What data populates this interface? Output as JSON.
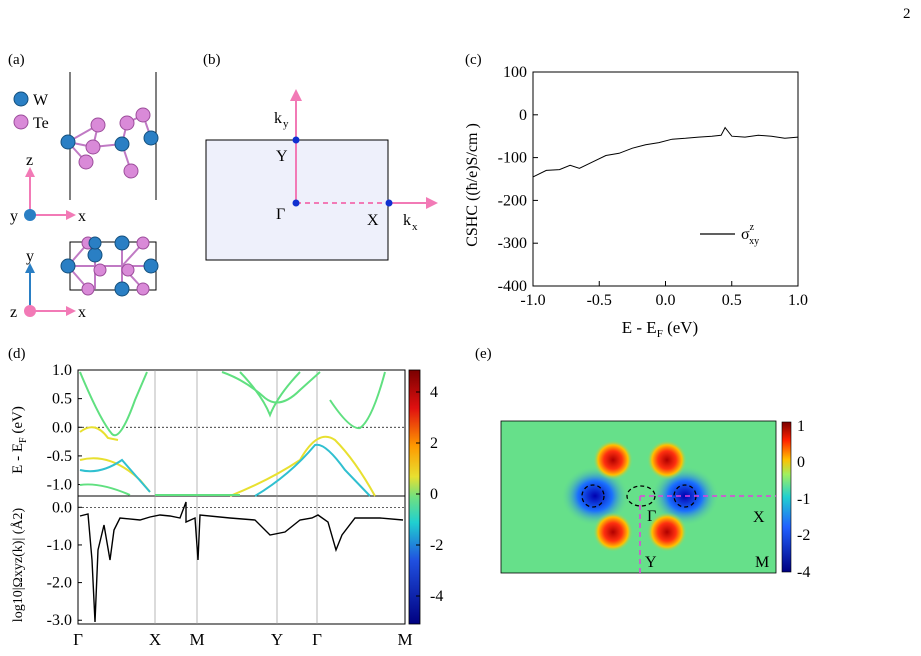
{
  "page_number": "2",
  "panel_labels": {
    "a": "(a)",
    "b": "(b)",
    "c": "(c)",
    "d": "(d)",
    "e": "(e)"
  },
  "panel_a": {
    "legend": [
      {
        "label": "W",
        "color": "#2a7fc4"
      },
      {
        "label": "Te",
        "color": "#d98ad8"
      }
    ],
    "axes_top": {
      "vertical": "z",
      "horizontal": "x",
      "out_of_plane": "y"
    },
    "axes_bottom": {
      "vertical": "y",
      "horizontal": "x",
      "out_of_plane": "z"
    }
  },
  "panel_b": {
    "kx": "k",
    "kx_sub": "x",
    "ky": "k",
    "ky_sub": "y",
    "points": {
      "gamma": "Γ",
      "x": "X",
      "y": "Y"
    },
    "colors": {
      "bz_fill": "#eef0fb",
      "arrow": "#f27ab6",
      "point": "#1030d0"
    }
  },
  "panel_c": {
    "chart_data": {
      "type": "line",
      "title": "",
      "xlabel": "E - E_F (eV)",
      "ylabel": "CSHC ((ħ/e)S/cm )",
      "xlim": [
        -1.0,
        1.0
      ],
      "ylim": [
        -400,
        100
      ],
      "xticks": [
        "-1.0",
        "-0.5",
        "0.0",
        "0.5",
        "1.0"
      ],
      "yticks": [
        "100",
        "0",
        "-100",
        "-200",
        "-300",
        "-400"
      ],
      "legend": "σ_xy^z",
      "legend_position": "bottom-right",
      "series": [
        {
          "name": "σ_xy^z",
          "x": [
            -1.0,
            -0.9,
            -0.8,
            -0.72,
            -0.65,
            -0.55,
            -0.45,
            -0.35,
            -0.25,
            -0.15,
            -0.05,
            0.05,
            0.15,
            0.25,
            0.35,
            0.42,
            0.45,
            0.5,
            0.6,
            0.7,
            0.8,
            0.9,
            1.0
          ],
          "y": [
            -145,
            -130,
            -128,
            -118,
            -125,
            -110,
            -95,
            -90,
            -78,
            -70,
            -65,
            -57,
            -55,
            -52,
            -50,
            -48,
            -30,
            -50,
            -52,
            -48,
            -50,
            -55,
            -52
          ]
        }
      ]
    },
    "legend_text": "σ",
    "legend_sup": "z",
    "legend_sub": "xy",
    "ylabel_text": "CSHC ((ħ/e)S/cm )",
    "xlabel_main": "E - E",
    "xlabel_sub": "F",
    "xlabel_unit": " (eV)"
  },
  "panel_d": {
    "chart_data": [
      {
        "type": "line",
        "ylabel": "E - E_F (eV)",
        "ylim": [
          -1.2,
          1.0
        ],
        "yticks": [
          "1.0",
          "0.5",
          "0.0",
          "-0.5",
          "-1.0"
        ],
        "xticks": [
          "Γ",
          "X",
          "M",
          "Y",
          "Γ",
          "M"
        ]
      },
      {
        "type": "line",
        "ylabel": "log10|Ω_xy^z(k)| (Å²)",
        "ylim": [
          -3.1,
          0.3
        ],
        "yticks": [
          "0.0",
          "-1.0",
          "-2.0",
          "-3.0"
        ]
      }
    ],
    "colorbar_ticks": [
      "4",
      "2",
      "0",
      "-2",
      "-4"
    ],
    "ylabel_top": "E - E",
    "ylabel_top_sub": "F",
    "ylabel_top_unit": " (eV)",
    "ylabel_bot": "log",
    "ylabel_bot_full": "log10|Ωxyz(k)| (Å2)",
    "k_labels": [
      "Γ",
      "X",
      "M",
      "Y",
      "Γ",
      "M"
    ]
  },
  "panel_e": {
    "colorbar_ticks": [
      "1",
      "0",
      "-1",
      "-2",
      "-4"
    ],
    "points": {
      "gamma": "Γ",
      "x": "X",
      "y": "Y",
      "m": "M"
    }
  }
}
